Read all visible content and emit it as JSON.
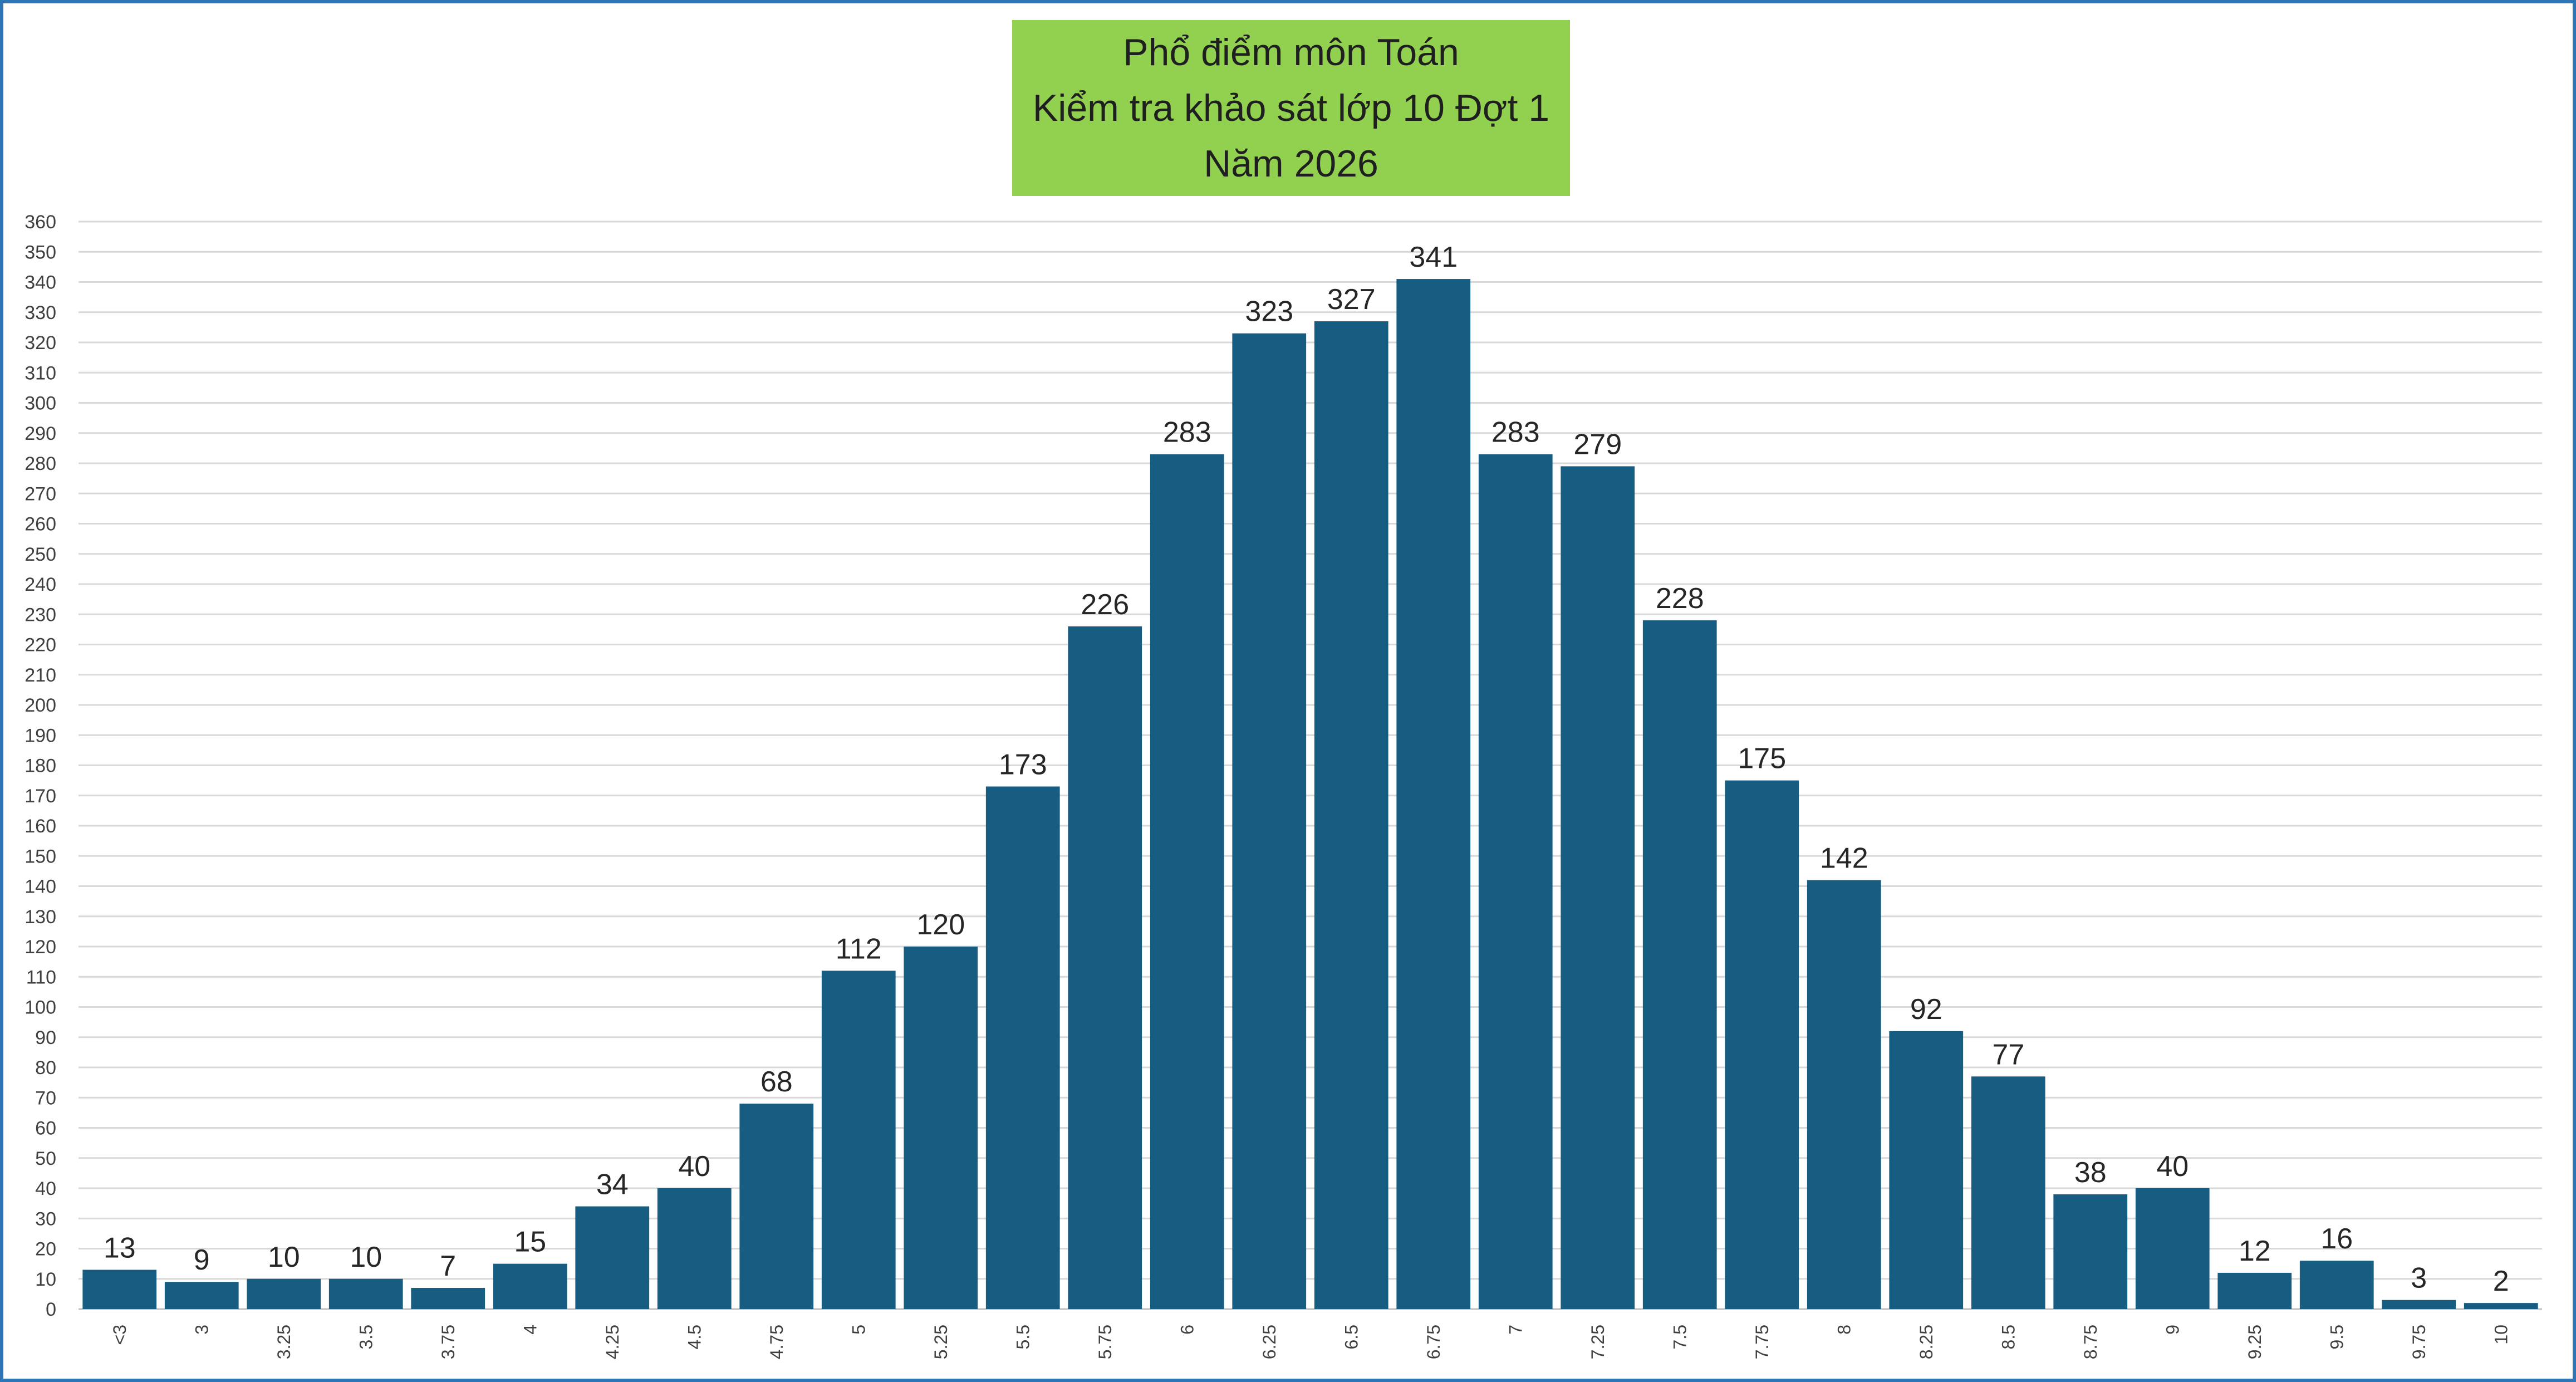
{
  "colors": {
    "bar": "#175d82",
    "title_background": "#92d050",
    "border": "#2e75b6",
    "gridline": "#d9d9d9"
  },
  "chart_data": {
    "type": "bar",
    "title_lines": [
      "Phổ điểm môn Toán",
      "Kiểm tra khảo sát lớp 10 Đợt 1",
      "Năm 2026"
    ],
    "xlabel": "",
    "ylabel": "",
    "categories": [
      "<3",
      "3",
      "3.25",
      "3.5",
      "3.75",
      "4",
      "4.25",
      "4.5",
      "4.75",
      "5",
      "5.25",
      "5.5",
      "5.75",
      "6",
      "6.25",
      "6.5",
      "6.75",
      "7",
      "7.25",
      "7.5",
      "7.75",
      "8",
      "8.25",
      "8.5",
      "8.75",
      "9",
      "9.25",
      "9.5",
      "9.75",
      "10"
    ],
    "values": [
      13,
      9,
      10,
      10,
      7,
      15,
      34,
      40,
      68,
      112,
      120,
      173,
      226,
      283,
      323,
      327,
      341,
      283,
      279,
      228,
      175,
      142,
      92,
      77,
      38,
      40,
      12,
      16,
      3,
      2
    ],
    "ylim": [
      0,
      360
    ],
    "ytick_step": 10,
    "grid": true,
    "legend": "none",
    "data_labels": true,
    "x_tick_rotation": "vertical"
  }
}
